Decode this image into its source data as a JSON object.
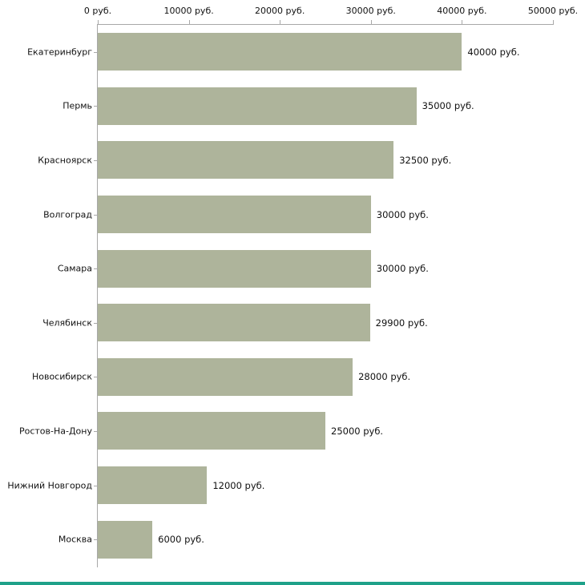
{
  "chart_data": {
    "type": "bar",
    "orientation": "horizontal",
    "title": "",
    "xlabel": "",
    "ylabel": "",
    "categories": [
      "Екатеринбург",
      "Пермь",
      "Красноярск",
      "Волгоград",
      "Самара",
      "Челябинск",
      "Новосибирск",
      "Ростов-На-Дону",
      "Нижний Новгород",
      "Москва"
    ],
    "values": [
      40000,
      35000,
      32500,
      30000,
      30000,
      29900,
      28000,
      25000,
      12000,
      6000
    ],
    "value_labels": [
      "40000 руб.",
      "35000 руб.",
      "32500 руб.",
      "30000 руб.",
      "30000 руб.",
      "29900 руб.",
      "28000 руб.",
      "25000 руб.",
      "12000 руб.",
      "6000 руб."
    ],
    "x_ticks": [
      0,
      10000,
      20000,
      30000,
      40000,
      50000
    ],
    "x_tick_labels": [
      "0 руб.",
      "10000 руб.",
      "20000 руб.",
      "30000 руб.",
      "40000 руб.",
      "50000 руб."
    ],
    "xlim": [
      0,
      50000
    ],
    "grid": false,
    "legend": false,
    "axis_position": "top-left",
    "bar_color": "#aeb49b",
    "axis_color": "#a8a8a8",
    "text_color": "#111111",
    "footer_strip_color": "#1ea189"
  }
}
